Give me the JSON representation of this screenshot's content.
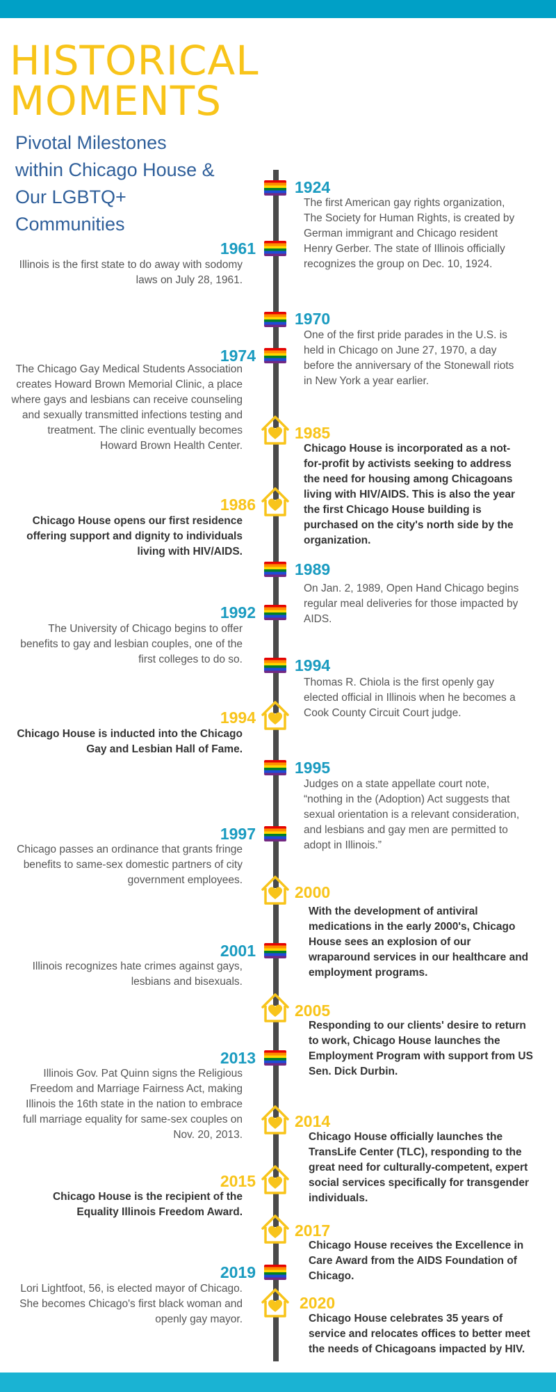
{
  "header": {
    "title_line1": "HISTORICAL",
    "title_line2": "MOMENTS",
    "subtitle": "Pivotal Milestones within Chicago House & Our LGBTQ+ Communities"
  },
  "colors": {
    "top_bar": "#00a0c6",
    "title": "#f8c41a",
    "subtitle": "#2f5f9a",
    "year_blue": "#1a9bc0",
    "year_gold": "#f8c41a",
    "spine": "#4a4a4a"
  },
  "icons": {
    "rainbow_flag": "rainbow-flag-icon",
    "chicago_house": "house-heart-icon"
  },
  "events": [
    {
      "year": "1924",
      "text": "The first American gay rights organization, The Society for Human Rights, is created by German immigrant and Chicago resident Henry Gerber. The state of Illinois officially recognizes the group on Dec. 10, 1924."
    },
    {
      "year": "1961",
      "text": "Illinois is the first state to do away with sodomy laws on July 28, 1961."
    },
    {
      "year": "1970",
      "text": "One of the first pride parades in the U.S. is held in Chicago on June 27, 1970, a day before the anniversary of the Stonewall riots in New York a year earlier."
    },
    {
      "year": "1974",
      "text": "The Chicago Gay Medical Students Association creates Howard Brown Memorial Clinic, a place where gays and lesbians can receive counseling and sexually transmitted infections testing and treatment. The clinic eventually becomes Howard Brown Health Center."
    },
    {
      "year": "1985",
      "text": "Chicago House is incorporated as a not-for-profit by activists seeking to address the need for housing among Chicagoans living with HIV/AIDS. This is also the year the first Chicago House building is purchased on the city's north side by the organization."
    },
    {
      "year": "1986",
      "text": "Chicago House opens our first residence offering support and dignity to individuals living with HIV/AIDS."
    },
    {
      "year": "1989",
      "text": "On Jan. 2, 1989, Open Hand Chicago begins regular meal deliveries for those impacted by AIDS."
    },
    {
      "year": "1992",
      "text": "The University of Chicago begins to offer benefits to gay and lesbian couples, one of the first colleges to do so."
    },
    {
      "year": "1994",
      "text": "Thomas R. Chiola is the first openly gay elected official in Illinois when he becomes a Cook County Circuit Court judge."
    },
    {
      "year": "1994",
      "text": "Chicago House is inducted into the Chicago Gay and Lesbian Hall of Fame."
    },
    {
      "year": "1995",
      "text": "Judges on a state appellate court note, “nothing in the (Adoption) Act suggests that sexual orientation is a relevant consideration, and lesbians and gay men are permitted to adopt in Illinois.”"
    },
    {
      "year": "1997",
      "text": "Chicago passes an ordinance that grants fringe benefits to same-sex domestic partners of city government employees."
    },
    {
      "year": "2000",
      "text": "With the development of antiviral medications in the early 2000's, Chicago House sees an explosion of our wraparound services in our healthcare and employment programs."
    },
    {
      "year": "2001",
      "text": "Illinois recognizes hate crimes against gays, lesbians and bisexuals."
    },
    {
      "year": "2005",
      "text": "Responding to our clients' desire to return to work, Chicago House launches the Employment Program with support from US Sen. Dick Durbin."
    },
    {
      "year": "2013",
      "text": "Illinois Gov. Pat Quinn signs the Religious Freedom and Marriage Fairness Act, making Illinois the 16th state in the nation to embrace full marriage equality for same-sex couples on Nov. 20, 2013."
    },
    {
      "year": "2014",
      "text": "Chicago House officially launches the TransLife Center (TLC), responding to the great need for culturally-competent, expert social services specifically for transgender individuals."
    },
    {
      "year": "2015",
      "text": "Chicago House is the recipient of the Equality Illinois Freedom Award."
    },
    {
      "year": "2017",
      "text": "Chicago House receives the Excellence in Care Award from the AIDS Foundation of Chicago."
    },
    {
      "year": "2019",
      "text": "Lori Lightfoot, 56, is elected mayor of Chicago. She becomes Chicago's first black woman and openly gay mayor."
    },
    {
      "year": "2020",
      "text": "Chicago House celebrates 35 years of service and relocates offices to better meet the needs of Chicagoans impacted by HIV."
    }
  ]
}
